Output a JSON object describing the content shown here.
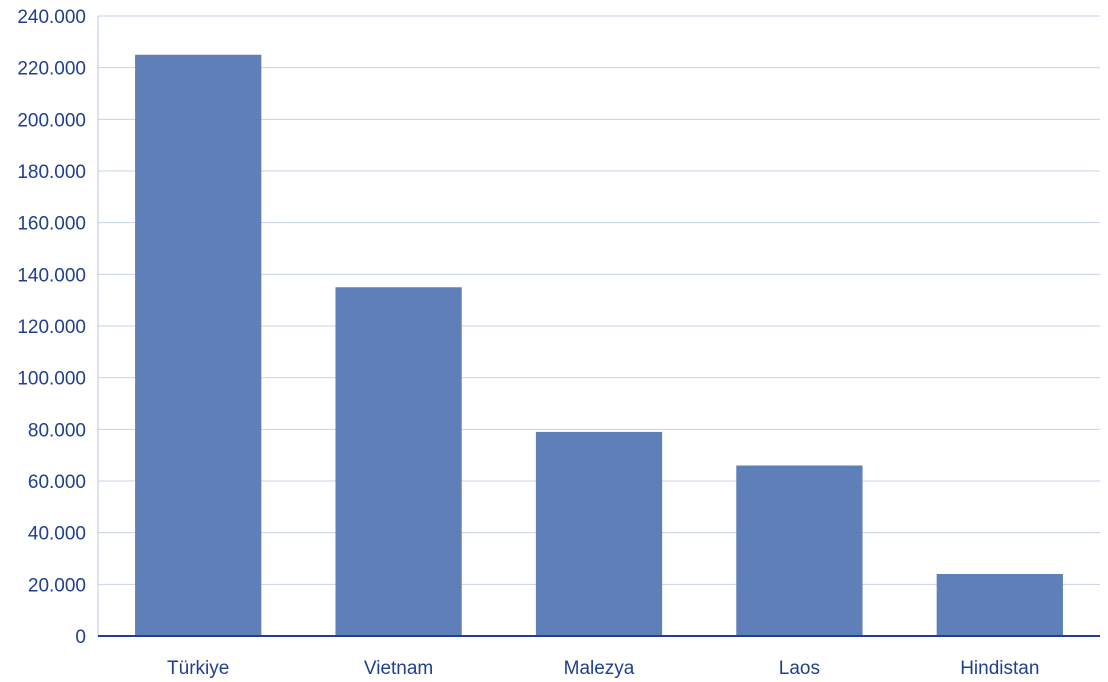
{
  "chart_data": {
    "type": "bar",
    "categories": [
      "Türkiye",
      "Vietnam",
      "Malezya",
      "Laos",
      "Hindistan"
    ],
    "values": [
      225000,
      135000,
      79000,
      66000,
      24000
    ],
    "title": "",
    "xlabel": "",
    "ylabel": "",
    "ylim": [
      0,
      240000
    ],
    "yticks": [
      "0",
      "20.000",
      "40.000",
      "60.000",
      "80.000",
      "100.000",
      "120.000",
      "140.000",
      "160.000",
      "180.000",
      "200.000",
      "220.000",
      "240.000"
    ],
    "grid": true,
    "legend": "none",
    "bar_color": "#5f7fb8",
    "axis_color": "#1f3f8f",
    "grid_color": "#c8d3e8"
  }
}
